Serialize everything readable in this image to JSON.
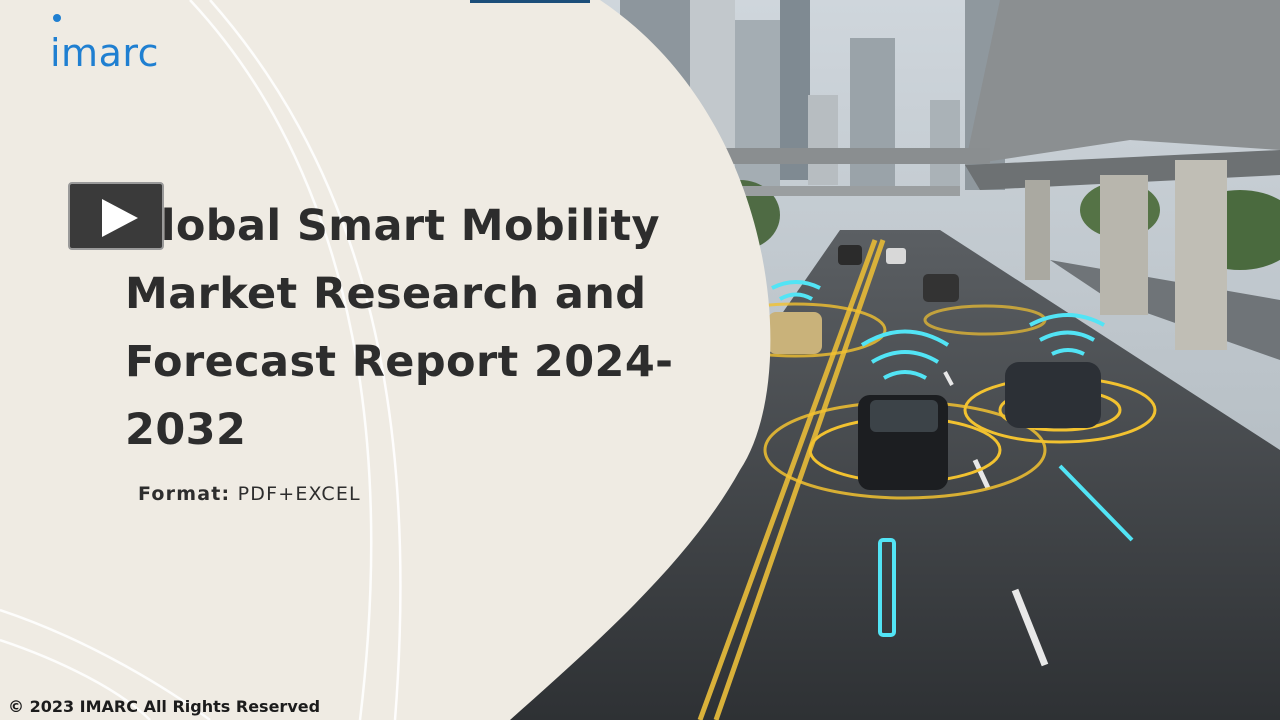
{
  "brand": {
    "logo_text": "imarc",
    "color": "#1f7fd1"
  },
  "player": {
    "play_icon": "play-icon"
  },
  "slide": {
    "title": "Global Smart Mobility Market Research and Forecast Report 2024-2032",
    "format_label": "Format:",
    "format_value": "PDF+EXCEL"
  },
  "footer": {
    "copyright": "© 2023 IMARC All Rights Reserved"
  },
  "colors": {
    "panel": "#efebe3",
    "title": "#2d2d2d",
    "sensor_cyan": "#52e4f5",
    "sensor_yellow": "#f2c230"
  }
}
